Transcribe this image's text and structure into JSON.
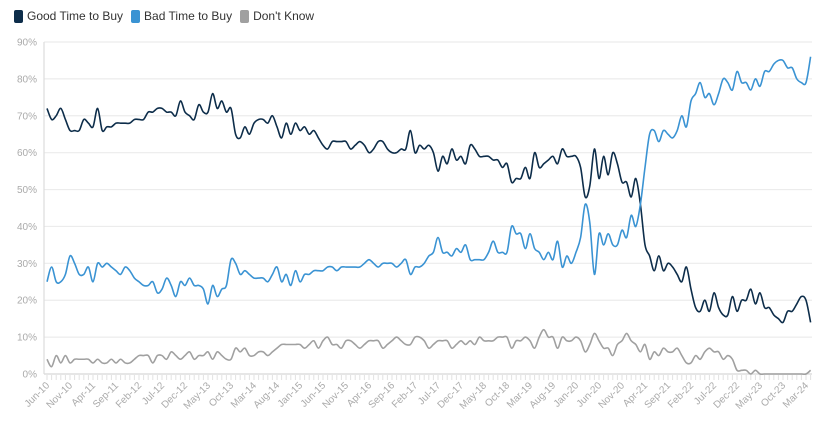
{
  "chart_data": {
    "type": "line",
    "title": "",
    "xlabel": "",
    "ylabel": "",
    "x_range": [
      "Jun-10",
      "Apr-24"
    ],
    "x_tick_labels": [
      "Jun-10",
      "Nov-10",
      "Apr-11",
      "Sep-11",
      "Feb-12",
      "Jul-12",
      "Dec-12",
      "May-13",
      "Oct-13",
      "Mar-14",
      "Aug-14",
      "Jan-15",
      "Jun-15",
      "Nov-15",
      "Apr-16",
      "Sep-16",
      "Feb-17",
      "Jul-17",
      "Dec-17",
      "May-18",
      "Oct-18",
      "Mar-19",
      "Aug-19",
      "Jan-20",
      "Jun-20",
      "Nov-20",
      "Apr-21",
      "Sep-21",
      "Feb-22",
      "Jul-22",
      "Dec-22",
      "May-23",
      "Oct-23",
      "Mar-24"
    ],
    "y_tick_labels": [
      "0%",
      "10%",
      "20%",
      "30%",
      "40%",
      "50%",
      "60%",
      "70%",
      "80%",
      "90%"
    ],
    "ylim": [
      0,
      90
    ],
    "grid": "horizontal",
    "legend_position": "top-left",
    "series": [
      {
        "name": "Good Time to Buy",
        "color": "#0d2d4a",
        "values": [
          72,
          69,
          70,
          72,
          69,
          66,
          66,
          66,
          69,
          68,
          67,
          72,
          66,
          67,
          67,
          68,
          68,
          68,
          68,
          69,
          69,
          69,
          71,
          71,
          72,
          72,
          71,
          71,
          70,
          74,
          71,
          70,
          69,
          73,
          71,
          71,
          76,
          72,
          74,
          71,
          72,
          65,
          64,
          67,
          65,
          68,
          69,
          69,
          68,
          70,
          67,
          64,
          68,
          65,
          68,
          66,
          67,
          65,
          66,
          64,
          62,
          61,
          63,
          63,
          63,
          63,
          61,
          62,
          63,
          62,
          60,
          61,
          63,
          63,
          61,
          60,
          60,
          61,
          61,
          66,
          60,
          62,
          61,
          62,
          60,
          55,
          59,
          57,
          61,
          58,
          59,
          57,
          62,
          61,
          59,
          59,
          59,
          58,
          58,
          56,
          57,
          52,
          53,
          53,
          56,
          53,
          60,
          56,
          57,
          58,
          59,
          57,
          61,
          59,
          59,
          59,
          56,
          48,
          51,
          61,
          53,
          59,
          54,
          60,
          57,
          52,
          52,
          48,
          53,
          46,
          35,
          32,
          28,
          32,
          28,
          30,
          29,
          27,
          25,
          29,
          23,
          18,
          17,
          20,
          17,
          22,
          18,
          16,
          16,
          21,
          17,
          20,
          20,
          23,
          19,
          22,
          18,
          18,
          16,
          15,
          14,
          17,
          17,
          19,
          21,
          20,
          14
        ]
      },
      {
        "name": "Bad Time to Buy",
        "color": "#3a93d3",
        "values": [
          25,
          29,
          25,
          25,
          27,
          32,
          30,
          27,
          27,
          29,
          25,
          30,
          29,
          30,
          29,
          28,
          27,
          29,
          28,
          26,
          25,
          24,
          24,
          25,
          22,
          23,
          26,
          24,
          21,
          25,
          24,
          26,
          24,
          24,
          23,
          19,
          24,
          21,
          23,
          24,
          31,
          30,
          27,
          28,
          27,
          26,
          26,
          26,
          25,
          27,
          29,
          25,
          27,
          24,
          28,
          25,
          27,
          27,
          28,
          28,
          28,
          29,
          29,
          28,
          29,
          29,
          29,
          29,
          29,
          30,
          31,
          30,
          29,
          30,
          30,
          30,
          29,
          30,
          31,
          27,
          29,
          29,
          30,
          32,
          33,
          37,
          33,
          33,
          32,
          34,
          33,
          35,
          31,
          31,
          31,
          31,
          33,
          36,
          33,
          33,
          33,
          40,
          38,
          38,
          34,
          38,
          34,
          33,
          31,
          33,
          31,
          36,
          29,
          32,
          30,
          33,
          37,
          46,
          41,
          27,
          38,
          35,
          38,
          35,
          35,
          39,
          37,
          43,
          40,
          46,
          56,
          65,
          66,
          63,
          66,
          65,
          64,
          66,
          70,
          67,
          74,
          76,
          79,
          75,
          76,
          73,
          76,
          80,
          79,
          77,
          82,
          79,
          79,
          77,
          80,
          78,
          82,
          82,
          84,
          85,
          85,
          83,
          83,
          80,
          79,
          79,
          86
        ]
      },
      {
        "name": "Don't Know",
        "color": "#a0a0a0",
        "values": [
          4,
          2,
          5,
          3,
          5,
          3,
          4,
          4,
          4,
          4,
          3,
          4,
          3,
          3,
          4,
          3,
          4,
          3,
          3,
          4,
          5,
          5,
          5,
          3,
          5,
          5,
          4,
          6,
          5,
          4,
          5,
          6,
          4,
          5,
          5,
          6,
          4,
          6,
          5,
          4,
          4,
          7,
          6,
          7,
          5,
          5,
          6,
          6,
          5,
          6,
          7,
          8,
          8,
          8,
          8,
          8,
          7,
          8,
          9,
          7,
          9,
          10,
          8,
          8,
          7,
          9,
          9,
          8,
          7,
          8,
          9,
          9,
          9,
          7,
          8,
          9,
          10,
          9,
          8,
          8,
          10,
          10,
          9,
          7,
          8,
          9,
          9,
          9,
          7,
          8,
          9,
          8,
          9,
          8,
          10,
          9,
          9,
          9,
          10,
          10,
          10,
          7,
          9,
          9,
          10,
          9,
          7,
          10,
          12,
          10,
          10,
          7,
          10,
          9,
          9,
          10,
          9,
          6,
          8,
          11,
          9,
          7,
          7,
          5,
          8,
          9,
          11,
          9,
          8,
          6,
          8,
          4,
          6,
          5,
          7,
          6,
          6,
          7,
          5,
          3,
          3,
          5,
          4,
          6,
          7,
          6,
          6,
          4,
          5,
          4,
          1,
          1,
          1,
          0,
          1,
          0,
          0,
          0,
          0,
          0,
          0,
          0,
          0,
          0,
          0,
          0,
          1
        ]
      }
    ]
  }
}
